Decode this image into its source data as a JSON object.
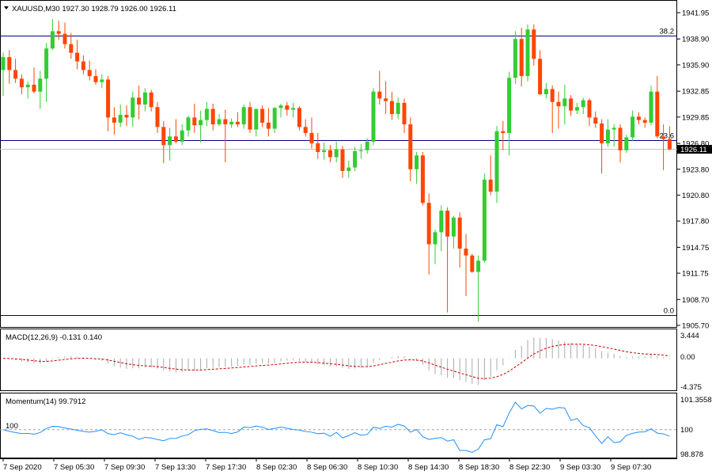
{
  "window": {
    "symbol_line": "XAUUSD,M30  1927.30 1928.79 1926.00 1926.11"
  },
  "price_axis": {
    "ticks": [
      "1941.95",
      "1938.90",
      "1935.90",
      "1932.85",
      "1929.85",
      "1926.80",
      "1923.80",
      "1920.80",
      "1917.80",
      "1914.75",
      "1911.75",
      "1908.70",
      "1905.70"
    ],
    "current_price": "1926.11"
  },
  "fibonacci": {
    "levels": [
      {
        "label": "38.2",
        "price": 1939.3
      },
      {
        "label": "23.6",
        "price": 1927.15
      },
      {
        "label": "0.0",
        "price": 1906.9
      }
    ]
  },
  "macd": {
    "label": "MACD(12,26,9) -0.131 0.140",
    "ticks": [
      "3.444",
      "0.00",
      "-4.375"
    ]
  },
  "momentum": {
    "label": "Momentum(14) 99.7912",
    "ticks": [
      "101.3558",
      "100",
      "98.878"
    ],
    "level_label": "100"
  },
  "time_axis": {
    "labels": [
      "7 Sep 2020",
      "7 Sep 05:30",
      "7 Sep 09:30",
      "7 Sep 13:30",
      "7 Sep 17:30",
      "8 Sep 02:30",
      "8 Sep 06:30",
      "8 Sep 10:30",
      "8 Sep 14:30",
      "8 Sep 18:30",
      "8 Sep 22:30",
      "9 Sep 03:30",
      "9 Sep 07:30"
    ]
  },
  "colors": {
    "bull": "#32CD32",
    "bear": "#FF4500",
    "macd_hist": "#A9A9A9",
    "macd_signal": "#CC0000",
    "momentum_line": "#1E90FF",
    "fib_line": "#000080",
    "frame": "#000000"
  },
  "chart_data": {
    "type": "candlestick",
    "candles": [
      [
        1935.3,
        1937.3,
        1932.3,
        1936.8
      ],
      [
        1936.8,
        1937.6,
        1933.7,
        1935.3
      ],
      [
        1935.3,
        1936.6,
        1933.8,
        1934.3
      ],
      [
        1934.3,
        1934.8,
        1932.5,
        1933.3
      ],
      [
        1933.3,
        1934.0,
        1932.0,
        1933.6
      ],
      [
        1933.6,
        1935.6,
        1932.6,
        1932.8
      ],
      [
        1932.8,
        1935.2,
        1930.8,
        1934.3
      ],
      [
        1934.3,
        1938.4,
        1931.6,
        1937.8
      ],
      [
        1937.8,
        1941.2,
        1937.6,
        1939.8
      ],
      [
        1939.8,
        1941.0,
        1938.8,
        1939.5
      ],
      [
        1939.5,
        1940.8,
        1937.8,
        1938.3
      ],
      [
        1938.3,
        1939.6,
        1936.6,
        1937.3
      ],
      [
        1937.3,
        1938.8,
        1935.4,
        1936.3
      ],
      [
        1936.3,
        1937.0,
        1934.8,
        1935.3
      ],
      [
        1935.3,
        1936.4,
        1934.1,
        1934.6
      ],
      [
        1934.6,
        1935.4,
        1933.6,
        1933.9
      ],
      [
        1933.9,
        1934.8,
        1933.2,
        1934.2
      ],
      [
        1934.2,
        1934.6,
        1928.2,
        1929.8
      ],
      [
        1929.8,
        1931.0,
        1927.8,
        1929.2
      ],
      [
        1929.2,
        1931.3,
        1928.7,
        1930.1
      ],
      [
        1930.1,
        1931.2,
        1928.8,
        1929.8
      ],
      [
        1929.8,
        1932.8,
        1928.7,
        1932.1
      ],
      [
        1932.1,
        1933.5,
        1929.6,
        1931.3
      ],
      [
        1931.3,
        1933.2,
        1930.5,
        1932.7
      ],
      [
        1932.7,
        1933.0,
        1930.5,
        1931.0
      ],
      [
        1931.0,
        1931.6,
        1928.0,
        1928.7
      ],
      [
        1928.7,
        1929.4,
        1924.5,
        1926.6
      ],
      [
        1926.6,
        1928.6,
        1924.8,
        1927.6
      ],
      [
        1927.6,
        1929.6,
        1926.8,
        1927.0
      ],
      [
        1927.0,
        1929.0,
        1926.6,
        1928.3
      ],
      [
        1928.3,
        1930.0,
        1927.6,
        1929.8
      ],
      [
        1929.8,
        1931.4,
        1928.0,
        1928.9
      ],
      [
        1928.9,
        1930.6,
        1926.9,
        1929.5
      ],
      [
        1929.5,
        1931.6,
        1928.8,
        1930.8
      ],
      [
        1930.8,
        1931.4,
        1928.3,
        1929.0
      ],
      [
        1929.0,
        1930.2,
        1928.8,
        1929.6
      ],
      [
        1929.6,
        1930.7,
        1924.6,
        1929.0
      ],
      [
        1929.0,
        1929.7,
        1928.6,
        1929.3
      ],
      [
        1929.3,
        1930.4,
        1928.7,
        1929.0
      ],
      [
        1929.0,
        1931.3,
        1928.5,
        1931.0
      ],
      [
        1931.0,
        1931.6,
        1928.0,
        1928.4
      ],
      [
        1928.4,
        1930.8,
        1927.6,
        1930.8
      ],
      [
        1930.8,
        1931.2,
        1928.7,
        1929.2
      ],
      [
        1929.2,
        1930.9,
        1927.6,
        1928.5
      ],
      [
        1928.5,
        1931.0,
        1928.0,
        1930.9
      ],
      [
        1930.9,
        1931.4,
        1929.8,
        1931.2
      ],
      [
        1931.2,
        1931.6,
        1930.0,
        1930.7
      ],
      [
        1930.7,
        1931.5,
        1929.8,
        1930.9
      ],
      [
        1930.9,
        1931.1,
        1928.3,
        1928.7
      ],
      [
        1928.7,
        1929.6,
        1927.6,
        1928.0
      ],
      [
        1928.0,
        1929.8,
        1926.2,
        1926.8
      ],
      [
        1926.8,
        1928.0,
        1925.0,
        1925.8
      ],
      [
        1925.8,
        1926.9,
        1924.9,
        1926.0
      ],
      [
        1926.0,
        1926.6,
        1924.6,
        1925.2
      ],
      [
        1925.2,
        1927.0,
        1924.6,
        1926.1
      ],
      [
        1926.1,
        1926.5,
        1922.8,
        1923.6
      ],
      [
        1923.6,
        1924.8,
        1922.8,
        1924.0
      ],
      [
        1924.0,
        1926.4,
        1923.6,
        1925.9
      ],
      [
        1925.9,
        1926.7,
        1925.0,
        1926.0
      ],
      [
        1926.0,
        1927.4,
        1925.6,
        1927.0
      ],
      [
        1927.0,
        1933.2,
        1926.6,
        1932.8
      ],
      [
        1932.8,
        1935.2,
        1931.3,
        1932.0
      ],
      [
        1932.0,
        1934.0,
        1930.2,
        1931.7
      ],
      [
        1931.7,
        1932.8,
        1929.5,
        1930.2
      ],
      [
        1930.2,
        1932.1,
        1929.6,
        1931.5
      ],
      [
        1931.5,
        1932.0,
        1928.0,
        1929.0
      ],
      [
        1929.0,
        1929.8,
        1922.4,
        1923.8
      ],
      [
        1923.8,
        1925.8,
        1922.1,
        1925.4
      ],
      [
        1925.4,
        1925.8,
        1919.6,
        1919.9
      ],
      [
        1919.9,
        1921.0,
        1911.6,
        1915.1
      ],
      [
        1915.1,
        1916.8,
        1912.8,
        1916.5
      ],
      [
        1916.5,
        1919.6,
        1914.3,
        1919.0
      ],
      [
        1919.0,
        1919.4,
        1907.2,
        1916.0
      ],
      [
        1916.0,
        1918.4,
        1914.6,
        1918.2
      ],
      [
        1918.2,
        1918.8,
        1912.4,
        1914.6
      ],
      [
        1914.6,
        1916.3,
        1909.1,
        1913.8
      ],
      [
        1913.8,
        1914.0,
        1911.8,
        1911.9
      ],
      [
        1911.9,
        1913.8,
        1906.1,
        1913.2
      ],
      [
        1913.2,
        1923.3,
        1913.0,
        1922.6
      ],
      [
        1922.6,
        1925.4,
        1920.8,
        1921.2
      ],
      [
        1921.2,
        1928.8,
        1919.9,
        1928.2
      ],
      [
        1928.2,
        1929.4,
        1926.0,
        1928.0
      ],
      [
        1928.0,
        1935.1,
        1925.4,
        1934.4
      ],
      [
        1934.4,
        1939.8,
        1933.7,
        1938.9
      ],
      [
        1938.9,
        1940.2,
        1933.4,
        1934.6
      ],
      [
        1934.6,
        1940.6,
        1934.0,
        1940.0
      ],
      [
        1940.0,
        1940.6,
        1935.8,
        1936.6
      ],
      [
        1936.6,
        1937.6,
        1932.4,
        1932.5
      ],
      [
        1932.5,
        1933.8,
        1932.0,
        1933.1
      ],
      [
        1933.1,
        1933.5,
        1928.0,
        1931.6
      ],
      [
        1931.6,
        1932.8,
        1928.5,
        1931.1
      ],
      [
        1931.1,
        1933.6,
        1929.0,
        1932.0
      ],
      [
        1932.0,
        1932.4,
        1930.0,
        1930.6
      ],
      [
        1930.6,
        1931.5,
        1930.2,
        1931.0
      ],
      [
        1931.0,
        1932.1,
        1930.2,
        1931.8
      ],
      [
        1931.8,
        1932.0,
        1928.8,
        1929.8
      ],
      [
        1929.8,
        1930.5,
        1928.6,
        1929.1
      ],
      [
        1929.1,
        1929.6,
        1923.3,
        1926.8
      ],
      [
        1926.8,
        1929.6,
        1926.4,
        1928.4
      ],
      [
        1928.4,
        1929.0,
        1926.4,
        1928.6
      ],
      [
        1928.6,
        1929.0,
        1924.6,
        1926.0
      ],
      [
        1926.0,
        1927.8,
        1925.7,
        1927.5
      ],
      [
        1927.5,
        1930.6,
        1927.1,
        1929.9
      ],
      [
        1929.9,
        1930.4,
        1929.0,
        1929.5
      ],
      [
        1929.5,
        1929.8,
        1928.6,
        1929.2
      ],
      [
        1929.2,
        1933.5,
        1928.9,
        1932.8
      ],
      [
        1932.8,
        1934.6,
        1927.4,
        1927.6
      ],
      [
        1927.6,
        1929.0,
        1923.7,
        1927.3
      ],
      [
        1927.3,
        1928.8,
        1926.0,
        1926.11
      ]
    ]
  }
}
